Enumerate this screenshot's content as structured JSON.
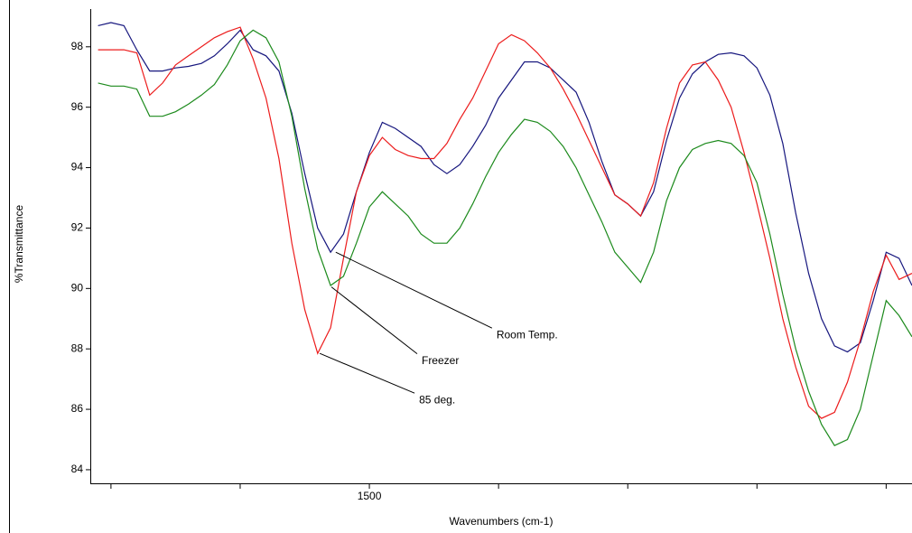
{
  "chart_data": {
    "type": "line",
    "xlabel": "Wavenumbers (cm-1)",
    "ylabel": "%Transmittance",
    "xlim": [
      1608,
      1290
    ],
    "ylim": [
      83.55,
      99.25
    ],
    "xticks": [
      1500
    ],
    "xminor_ticks": [
      1600,
      1550,
      1450,
      1400,
      1350,
      1300
    ],
    "yticks": [
      84,
      86,
      88,
      90,
      92,
      94,
      96,
      98
    ],
    "x": [
      1605,
      1600,
      1595,
      1590,
      1585,
      1580,
      1575,
      1570,
      1565,
      1560,
      1555,
      1550,
      1545,
      1540,
      1535,
      1530,
      1525,
      1520,
      1515,
      1510,
      1505,
      1500,
      1495,
      1490,
      1485,
      1480,
      1475,
      1470,
      1465,
      1460,
      1455,
      1450,
      1445,
      1440,
      1435,
      1430,
      1425,
      1420,
      1415,
      1410,
      1405,
      1400,
      1395,
      1390,
      1385,
      1380,
      1375,
      1370,
      1365,
      1360,
      1355,
      1350,
      1345,
      1340,
      1335,
      1330,
      1325,
      1320,
      1315,
      1310,
      1305,
      1300,
      1295,
      1290
    ],
    "series": [
      {
        "color": "#16167e",
        "values": [
          98.7,
          98.8,
          98.7,
          97.9,
          97.2,
          97.2,
          97.3,
          97.35,
          97.45,
          97.7,
          98.1,
          98.55,
          97.9,
          97.7,
          97.2,
          95.8,
          93.8,
          92.0,
          91.2,
          91.8,
          93.2,
          94.5,
          95.5,
          95.3,
          95.0,
          94.7,
          94.1,
          93.8,
          94.1,
          94.7,
          95.4,
          96.3,
          96.9,
          97.5,
          97.5,
          97.3,
          96.9,
          96.5,
          95.5,
          94.2,
          93.1,
          92.8,
          92.4,
          93.2,
          94.9,
          96.3,
          97.1,
          97.5,
          97.75,
          97.8,
          97.7,
          97.3,
          96.4,
          94.8,
          92.5,
          90.5,
          89.0,
          88.1,
          87.9,
          88.2,
          89.6,
          91.2,
          91.0,
          90.1
        ]
      },
      {
        "color": "#ec1c1c",
        "values": [
          97.9,
          97.9,
          97.9,
          97.8,
          96.4,
          96.8,
          97.4,
          97.7,
          98.0,
          98.3,
          98.5,
          98.65,
          97.6,
          96.3,
          94.3,
          91.5,
          89.3,
          87.85,
          88.7,
          91.0,
          93.2,
          94.4,
          95.0,
          94.6,
          94.4,
          94.3,
          94.3,
          94.8,
          95.6,
          96.3,
          97.2,
          98.1,
          98.4,
          98.2,
          97.8,
          97.3,
          96.6,
          95.8,
          94.9,
          94.0,
          93.1,
          92.8,
          92.4,
          93.5,
          95.3,
          96.8,
          97.4,
          97.5,
          96.9,
          96.0,
          94.5,
          92.8,
          91.0,
          89.0,
          87.4,
          86.1,
          85.7,
          85.9,
          86.9,
          88.3,
          89.9,
          91.1,
          90.3,
          90.5
        ]
      },
      {
        "color": "#1c8a1c",
        "values": [
          96.8,
          96.7,
          96.7,
          96.6,
          95.7,
          95.7,
          95.85,
          96.1,
          96.4,
          96.75,
          97.4,
          98.2,
          98.55,
          98.3,
          97.5,
          95.7,
          93.3,
          91.3,
          90.1,
          90.4,
          91.5,
          92.7,
          93.2,
          92.8,
          92.4,
          91.8,
          91.5,
          91.5,
          92.0,
          92.8,
          93.7,
          94.5,
          95.1,
          95.6,
          95.5,
          95.2,
          94.7,
          94.0,
          93.1,
          92.2,
          91.2,
          90.7,
          90.2,
          91.2,
          92.9,
          94.0,
          94.6,
          94.8,
          94.9,
          94.8,
          94.4,
          93.5,
          91.8,
          89.8,
          88.0,
          86.6,
          85.5,
          84.8,
          85.0,
          86.0,
          87.8,
          89.6,
          89.1,
          88.4
        ]
      }
    ],
    "annotations": [
      {
        "text": "Room Temp.",
        "x": 1513,
        "y": 91.2
      },
      {
        "text": "Freezer",
        "x": 1514.7,
        "y": 90.05
      },
      {
        "text": "85 deg.",
        "x": 1519.2,
        "y": 87.85
      }
    ]
  }
}
